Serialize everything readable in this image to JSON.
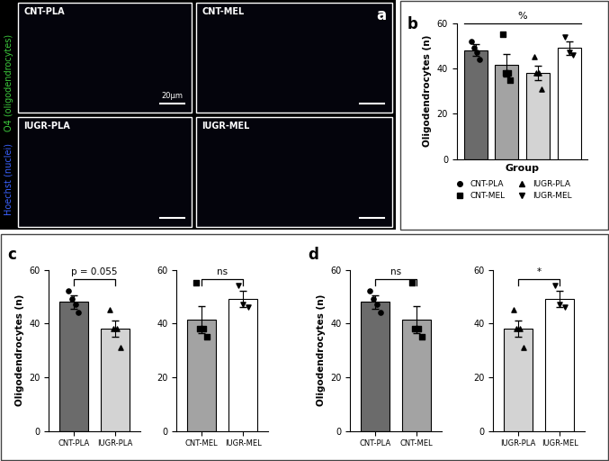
{
  "panel_labels": [
    "a",
    "b",
    "c",
    "d"
  ],
  "image_panel": {
    "images": [
      "CNT-PLA",
      "CNT-MEL",
      "IUGR-PLA",
      "IUGR-MEL"
    ],
    "scale_bar": "20μm",
    "channels": [
      {
        "label": "O4 (oligodendrocytes)",
        "color": "#3cc83c"
      },
      {
        "label": "Hoechst (nuclei)",
        "color": "#3a62ff"
      }
    ]
  },
  "chart_data": [
    {
      "type": "bar",
      "categories": [
        null,
        null,
        null,
        null
      ],
      "x_label": "Group",
      "y_label": "Oligodendrocytes (n)",
      "ylim": [
        0,
        60
      ],
      "yticks": [
        0,
        20,
        40,
        60
      ],
      "tick_labels": "y",
      "legend": "bottom",
      "series": [
        {
          "name": "CNT-PLA",
          "color": "#6b6b6b",
          "marker": "o",
          "values": [
            48,
            null,
            null,
            null
          ],
          "errors": [
            2.6,
            null,
            null,
            null
          ],
          "points": [
            [
              52,
              49,
              47,
              44
            ],
            null,
            null,
            null
          ]
        },
        {
          "name": "CNT-MEL",
          "color": "#a3a3a3",
          "marker": "s",
          "values": [
            null,
            41.5,
            null,
            null
          ],
          "errors": [
            null,
            5,
            null,
            null
          ],
          "points": [
            null,
            [
              55,
              38,
              38,
              35
            ],
            null,
            null
          ]
        },
        {
          "name": "IUGR-PLA",
          "color": "#d3d3d3",
          "marker": "^",
          "values": [
            null,
            null,
            38,
            null
          ],
          "errors": [
            null,
            null,
            3,
            null
          ],
          "points": [
            null,
            null,
            [
              45,
              38,
              38,
              31
            ],
            null
          ]
        },
        {
          "name": "IUGR-MEL",
          "color": "#ffffff",
          "marker": "v",
          "values": [
            null,
            null,
            null,
            49
          ],
          "errors": [
            null,
            null,
            null,
            3
          ],
          "points": [
            null,
            null,
            null,
            [
              54,
              47,
              46
            ]
          ]
        }
      ],
      "comparisons": [
        {
          "between": [
            "CNT-PLA",
            "IUGR-MEL"
          ],
          "label": "%"
        }
      ]
    },
    {
      "type": "bar",
      "categories": [
        "CNT-PLA",
        "IUGR-PLA"
      ],
      "y_label": "Oligodendrocytes (n)",
      "ylim": [
        0,
        60
      ],
      "yticks": [
        0,
        20,
        40,
        60
      ],
      "series": [
        {
          "color": "#6b6b6b",
          "marker": "o",
          "values": [
            48,
            null
          ],
          "errors": [
            2.6,
            null
          ],
          "points": [
            [
              52,
              49,
              47,
              44
            ],
            null
          ]
        },
        {
          "color": "#d3d3d3",
          "marker": "^",
          "values": [
            null,
            38
          ],
          "errors": [
            null,
            3
          ],
          "points": [
            null,
            [
              45,
              38,
              38,
              31
            ]
          ]
        }
      ],
      "comparisons": [
        {
          "between": [
            "CNT-PLA",
            "IUGR-PLA"
          ],
          "label": "p = 0.055"
        }
      ]
    },
    {
      "type": "bar",
      "categories": [
        "CNT-MEL",
        "IUGR-MEL"
      ],
      "ylim": [
        0,
        60
      ],
      "yticks": [
        0,
        20,
        40,
        60
      ],
      "series": [
        {
          "color": "#a3a3a3",
          "marker": "s",
          "values": [
            41.5,
            null
          ],
          "errors": [
            5,
            null
          ],
          "points": [
            [
              55,
              38,
              38,
              35
            ],
            null
          ]
        },
        {
          "color": "#ffffff",
          "marker": "v",
          "values": [
            null,
            49
          ],
          "errors": [
            null,
            3
          ],
          "points": [
            null,
            [
              54,
              47,
              46
            ]
          ]
        }
      ],
      "comparisons": [
        {
          "between": [
            "CNT-MEL",
            "IUGR-MEL"
          ],
          "label": "ns"
        }
      ]
    },
    {
      "type": "bar",
      "categories": [
        "CNT-PLA",
        "CNT-MEL"
      ],
      "y_label": "Oligodendrocytes (n)",
      "ylim": [
        0,
        60
      ],
      "yticks": [
        0,
        20,
        40,
        60
      ],
      "series": [
        {
          "color": "#6b6b6b",
          "marker": "o",
          "values": [
            48,
            null
          ],
          "errors": [
            2.6,
            null
          ],
          "points": [
            [
              52,
              49,
              47,
              44
            ],
            null
          ]
        },
        {
          "color": "#a3a3a3",
          "marker": "s",
          "values": [
            null,
            41.5
          ],
          "errors": [
            null,
            5
          ],
          "points": [
            null,
            [
              55,
              38,
              38,
              35
            ]
          ]
        }
      ],
      "comparisons": [
        {
          "between": [
            "CNT-PLA",
            "CNT-MEL"
          ],
          "label": "ns"
        }
      ]
    },
    {
      "type": "bar",
      "categories": [
        "IUGR-PLA",
        "IUGR-MEL"
      ],
      "ylim": [
        0,
        60
      ],
      "yticks": [
        0,
        20,
        40,
        60
      ],
      "series": [
        {
          "color": "#d3d3d3",
          "marker": "^",
          "values": [
            38,
            null
          ],
          "errors": [
            3,
            null
          ],
          "points": [
            [
              45,
              38,
              38,
              31
            ],
            null
          ]
        },
        {
          "color": "#ffffff",
          "marker": "v",
          "values": [
            null,
            49
          ],
          "errors": [
            null,
            3
          ],
          "points": [
            null,
            [
              54,
              47,
              46
            ]
          ]
        }
      ],
      "comparisons": [
        {
          "between": [
            "IUGR-PLA",
            "IUGR-MEL"
          ],
          "label": "*"
        }
      ]
    }
  ]
}
